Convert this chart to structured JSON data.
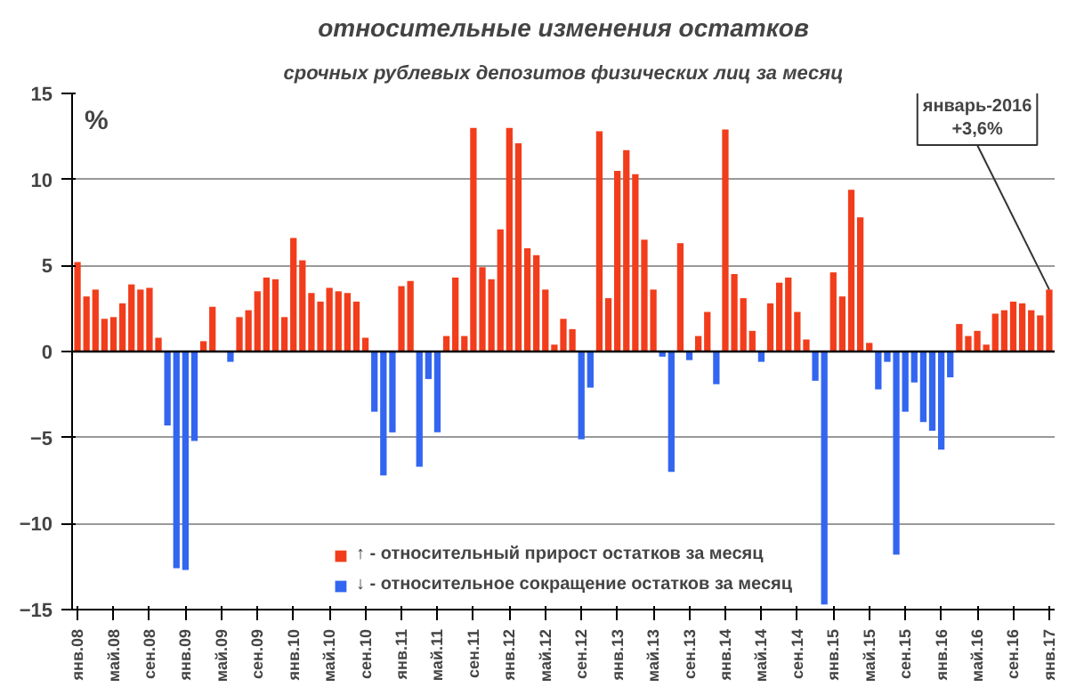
{
  "chart_data": {
    "type": "bar",
    "title": "относительные изменения остатков",
    "subtitle": "срочных рублевых депозитов физических лиц за месяц",
    "ylabel": "%",
    "categories": [
      "янв.08",
      null,
      null,
      null,
      "май.08",
      null,
      null,
      null,
      "сен.08",
      null,
      null,
      null,
      "янв.09",
      null,
      null,
      null,
      "май.09",
      null,
      null,
      null,
      "сен.09",
      null,
      null,
      null,
      "янв.10",
      null,
      null,
      null,
      "май.10",
      null,
      null,
      null,
      "сен.10",
      null,
      null,
      null,
      "янв.11",
      null,
      null,
      null,
      "май.11",
      null,
      null,
      null,
      "сен.11",
      null,
      null,
      null,
      "янв.12",
      null,
      null,
      null,
      "май.12",
      null,
      null,
      null,
      "сен.12",
      null,
      null,
      null,
      "янв.13",
      null,
      null,
      null,
      "май.13",
      null,
      null,
      null,
      "сен.13",
      null,
      null,
      null,
      "янв.14",
      null,
      null,
      null,
      "май.14",
      null,
      null,
      null,
      "сен.14",
      null,
      null,
      null,
      "янв.15",
      null,
      null,
      null,
      "май.15",
      null,
      null,
      null,
      "сен.15",
      null,
      null,
      null,
      "янв.16",
      null,
      null,
      null,
      "май.16",
      null,
      null,
      null,
      "сен.16",
      null,
      null,
      null,
      "янв.17"
    ],
    "series": [
      {
        "name": "↑ - относительный прирост остатков за месяц",
        "color": "#f23d1c",
        "values": [
          5.2,
          3.2,
          3.6,
          1.9,
          2.0,
          2.8,
          3.9,
          3.6,
          3.7,
          0.8,
          null,
          null,
          null,
          null,
          0.6,
          2.6,
          0,
          null,
          2.0,
          2.4,
          3.5,
          4.3,
          4.2,
          2.0,
          6.6,
          5.3,
          3.4,
          2.9,
          3.7,
          3.5,
          3.4,
          2.9,
          0.8,
          null,
          null,
          null,
          3.8,
          4.1,
          null,
          null,
          null,
          0.9,
          4.3,
          0.9,
          13.0,
          4.9,
          4.2,
          7.1,
          13.0,
          12.1,
          6.0,
          5.6,
          3.6,
          0.4,
          1.9,
          1.3,
          null,
          null,
          12.8,
          3.1,
          10.5,
          11.7,
          10.3,
          6.5,
          3.6,
          null,
          null,
          6.3,
          null,
          0.9,
          2.3,
          null,
          12.9,
          4.5,
          3.1,
          1.2,
          null,
          2.8,
          4.0,
          4.3,
          2.3,
          0.7,
          null,
          null,
          4.6,
          3.2,
          9.4,
          7.8,
          0.5,
          null,
          null,
          null,
          null,
          null,
          null,
          null,
          null,
          null,
          1.6,
          0.9,
          1.2,
          0.4,
          2.2,
          2.4,
          2.9,
          2.8,
          2.4,
          2.1,
          3.6
        ]
      },
      {
        "name": "↓ - относительное сокращение остатков за месяц",
        "color": "#3366f0",
        "values": [
          null,
          null,
          null,
          null,
          null,
          null,
          null,
          null,
          null,
          null,
          -4.3,
          -12.6,
          -12.7,
          -5.2,
          null,
          null,
          null,
          -0.6,
          null,
          null,
          null,
          null,
          null,
          null,
          null,
          null,
          null,
          null,
          null,
          null,
          null,
          null,
          null,
          -3.5,
          -7.2,
          -4.7,
          null,
          null,
          -6.7,
          -1.6,
          -4.7,
          null,
          null,
          null,
          null,
          null,
          null,
          null,
          null,
          null,
          null,
          null,
          null,
          null,
          null,
          null,
          -5.1,
          -2.1,
          null,
          null,
          null,
          null,
          null,
          null,
          null,
          -0.3,
          -7.0,
          null,
          -0.5,
          null,
          null,
          -1.9,
          null,
          null,
          null,
          null,
          -0.6,
          null,
          null,
          null,
          null,
          null,
          -1.7,
          -14.7,
          null,
          null,
          null,
          null,
          null,
          -2.2,
          -0.6,
          -11.8,
          -3.5,
          -1.8,
          -4.1,
          -4.6,
          -5.7,
          -1.5,
          null,
          null,
          null,
          null,
          null,
          null,
          null,
          null,
          null,
          null,
          null
        ]
      }
    ],
    "ylim": [
      -15,
      15
    ],
    "yticks": [
      -15,
      -10,
      -5,
      0,
      5,
      10,
      15
    ],
    "grid": "y",
    "legend": "bottom",
    "annotations": [
      {
        "text": "январь-2016\n+3,6%",
        "x": "янв.17",
        "y": 3.6
      }
    ]
  }
}
